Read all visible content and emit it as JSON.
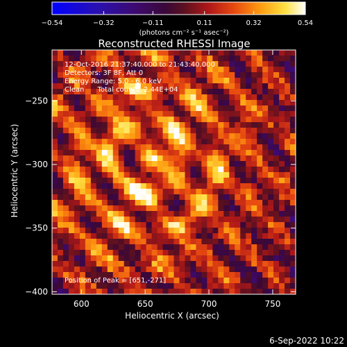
{
  "chart_data": {
    "type": "heatmap",
    "title": "Reconstructed RHESSI Image",
    "xlabel": "Heliocentric X (arcsec)",
    "ylabel": "Heliocentric Y (arcsec)",
    "xlim": [
      577,
      768
    ],
    "ylim": [
      -402,
      -210
    ],
    "x_ticks": [
      "600",
      "650",
      "700",
      "750"
    ],
    "y_ticks": [
      "−250",
      "−300",
      "−350",
      "−400"
    ],
    "colorbar": {
      "range": [
        -0.54,
        0.54
      ],
      "tick_labels": [
        "−0.54",
        "−0.32",
        "−0.11",
        "0.11",
        "0.32",
        "0.54"
      ],
      "units_text": "(photons cm⁻² s⁻¹ asec⁻²)"
    },
    "annotations": [
      "12-Oct-2016 21:37:40.000 to 21:43:40.000",
      "Detectors: 3F 8F, Att 0",
      "Energy Range: 5.0 - 6.0 keV",
      "Clean      Total counts: 2.44E+04"
    ],
    "peak_label": "Position of Peak = [651,-271]",
    "peak": [
      651,
      -271
    ],
    "grid": false
  },
  "footer": {
    "date": "6-Sep-2022 10:22"
  }
}
